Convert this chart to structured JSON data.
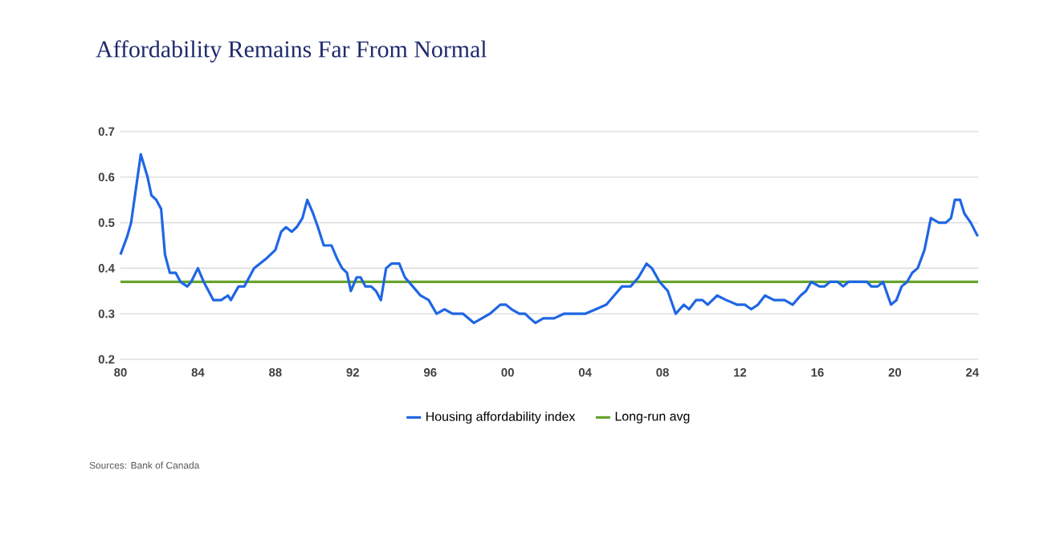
{
  "chart_data": {
    "type": "line",
    "title": "Affordability Remains Far From Normal",
    "annotations": [
      "Sources: Bank of Canada"
    ],
    "series": [
      {
        "name": "Housing affordability index",
        "color": "#1f66e5",
        "x": [
          1980.0,
          1980.35,
          1980.55,
          1981.05,
          1981.4,
          1981.6,
          1981.85,
          1982.1,
          1982.3,
          1982.55,
          1982.85,
          1983.1,
          1983.45,
          1983.65,
          1984.0,
          1984.3,
          1984.55,
          1984.8,
          1985.2,
          1985.55,
          1985.7,
          1986.1,
          1986.4,
          1986.65,
          1986.9,
          1987.5,
          1987.75,
          1988.0,
          1988.3,
          1988.55,
          1988.85,
          1989.1,
          1989.4,
          1989.65,
          1989.95,
          1990.2,
          1990.5,
          1990.9,
          1991.2,
          1991.45,
          1991.7,
          1991.9,
          1992.2,
          1992.4,
          1992.65,
          1992.95,
          1993.2,
          1993.45,
          1993.72,
          1994.0,
          1994.4,
          1994.69,
          1995.1,
          1995.5,
          1995.92,
          1996.33,
          1996.74,
          1997.15,
          1997.7,
          1998.25,
          1998.67,
          1999.08,
          1999.62,
          1999.9,
          2000.2,
          2000.6,
          2000.9,
          2001.15,
          2001.43,
          2001.84,
          2002.4,
          2002.9,
          2003.33,
          2003.6,
          2004.0,
          2004.56,
          2005.1,
          2005.5,
          2005.9,
          2006.35,
          2006.76,
          2007.17,
          2007.45,
          2007.85,
          2008.27,
          2008.68,
          2009.1,
          2009.37,
          2009.73,
          2010.06,
          2010.33,
          2010.82,
          2011.29,
          2011.84,
          2012.25,
          2012.58,
          2012.93,
          2013.29,
          2013.76,
          2014.03,
          2014.3,
          2014.72,
          2015.13,
          2015.41,
          2015.68,
          2016.1,
          2016.37,
          2016.64,
          2017.05,
          2017.33,
          2017.6,
          2018.15,
          2018.56,
          2018.78,
          2019.11,
          2019.39,
          2019.8,
          2020.08,
          2020.35,
          2020.63,
          2020.9,
          2021.18,
          2021.53,
          2021.86,
          2022.27,
          2022.63,
          2022.9,
          2023.1,
          2023.37,
          2023.59,
          2023.92,
          2024.28
        ],
        "values": [
          0.43,
          0.47,
          0.5,
          0.65,
          0.6,
          0.56,
          0.55,
          0.53,
          0.43,
          0.39,
          0.39,
          0.37,
          0.36,
          0.37,
          0.4,
          0.37,
          0.35,
          0.33,
          0.33,
          0.34,
          0.33,
          0.36,
          0.36,
          0.38,
          0.4,
          0.42,
          0.43,
          0.44,
          0.48,
          0.49,
          0.48,
          0.49,
          0.51,
          0.55,
          0.52,
          0.49,
          0.45,
          0.45,
          0.42,
          0.4,
          0.39,
          0.35,
          0.38,
          0.38,
          0.36,
          0.36,
          0.35,
          0.33,
          0.4,
          0.41,
          0.41,
          0.38,
          0.36,
          0.34,
          0.33,
          0.3,
          0.31,
          0.3,
          0.3,
          0.28,
          0.29,
          0.3,
          0.32,
          0.32,
          0.31,
          0.3,
          0.3,
          0.29,
          0.28,
          0.29,
          0.29,
          0.3,
          0.3,
          0.3,
          0.3,
          0.31,
          0.32,
          0.34,
          0.36,
          0.36,
          0.38,
          0.41,
          0.4,
          0.37,
          0.35,
          0.3,
          0.32,
          0.31,
          0.33,
          0.33,
          0.32,
          0.34,
          0.33,
          0.32,
          0.32,
          0.31,
          0.32,
          0.34,
          0.33,
          0.33,
          0.33,
          0.32,
          0.34,
          0.35,
          0.37,
          0.36,
          0.36,
          0.37,
          0.37,
          0.36,
          0.37,
          0.37,
          0.37,
          0.36,
          0.36,
          0.37,
          0.32,
          0.33,
          0.36,
          0.37,
          0.39,
          0.4,
          0.44,
          0.51,
          0.5,
          0.5,
          0.51,
          0.55,
          0.55,
          0.52,
          0.5,
          0.47
        ]
      },
      {
        "name": "Long-run avg",
        "color": "#67a32c",
        "x": [
          1980.0,
          2024.3
        ],
        "values": [
          0.37,
          0.37
        ]
      }
    ],
    "xlim": [
      1980,
      2024.3
    ],
    "xticks": [
      {
        "value": 1980,
        "label": "80"
      },
      {
        "value": 1984,
        "label": "84"
      },
      {
        "value": 1988,
        "label": "88"
      },
      {
        "value": 1992,
        "label": "92"
      },
      {
        "value": 1996,
        "label": "96"
      },
      {
        "value": 2000,
        "label": "00"
      },
      {
        "value": 2004,
        "label": "04"
      },
      {
        "value": 2008,
        "label": "08"
      },
      {
        "value": 2012,
        "label": "12"
      },
      {
        "value": 2016,
        "label": "16"
      },
      {
        "value": 2020,
        "label": "20"
      },
      {
        "value": 2024,
        "label": "24"
      }
    ],
    "ylim": [
      0.2,
      0.7
    ],
    "yticks": [
      0.2,
      0.3,
      0.4,
      0.5,
      0.6,
      0.7
    ],
    "grid": "y",
    "legend": "bottom",
    "line_style": "solid",
    "marker": "none"
  }
}
